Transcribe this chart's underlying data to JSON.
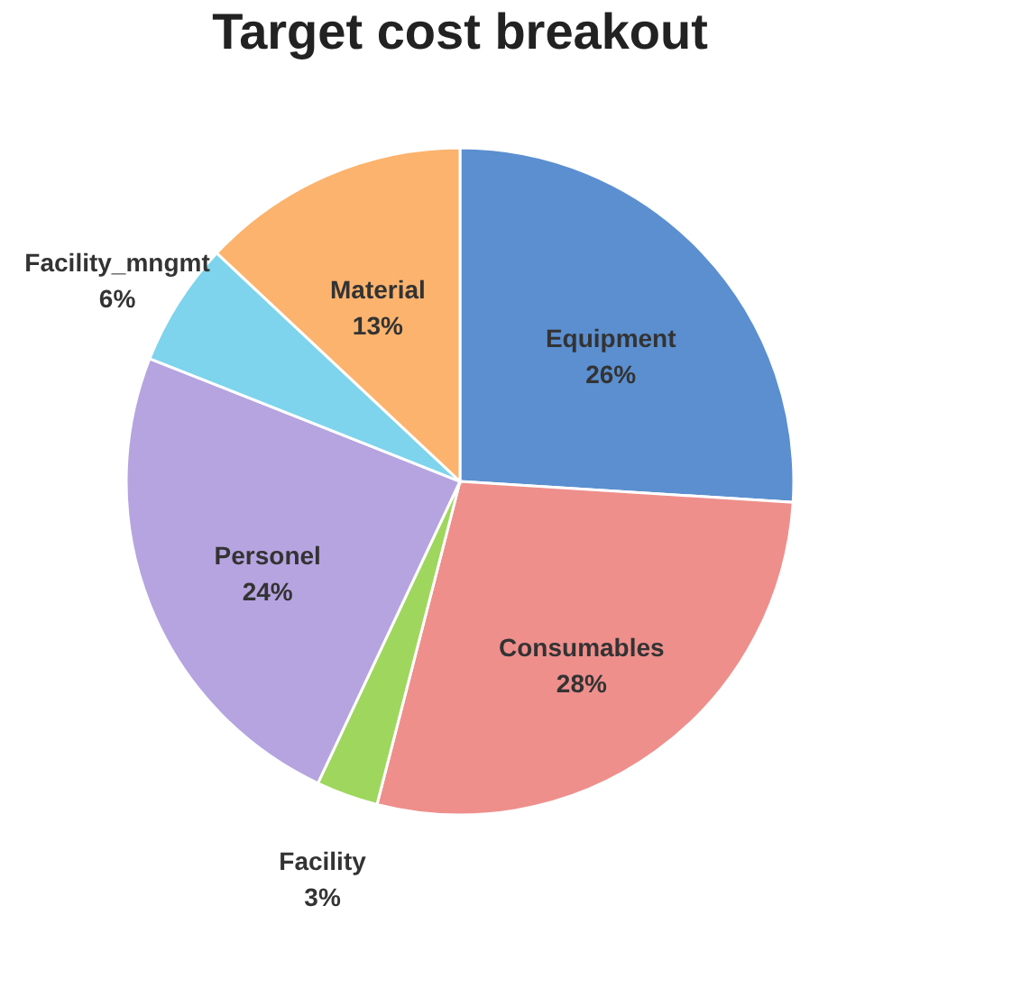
{
  "chart_data": {
    "type": "pie",
    "title": "Target cost breakout",
    "categories": [
      "Equipment",
      "Consumables",
      "Facility",
      "Personel",
      "Facility_mngmt",
      "Material"
    ],
    "values": [
      26,
      28,
      3,
      24,
      6,
      13
    ],
    "value_labels": [
      "26%",
      "28%",
      "3%",
      "24%",
      "6%",
      "13%"
    ],
    "colors": [
      "#5b8fd0",
      "#ee8f8c",
      "#9fd65e",
      "#b6a4e0",
      "#7dd4ec",
      "#fbb36e"
    ],
    "legend": false
  }
}
